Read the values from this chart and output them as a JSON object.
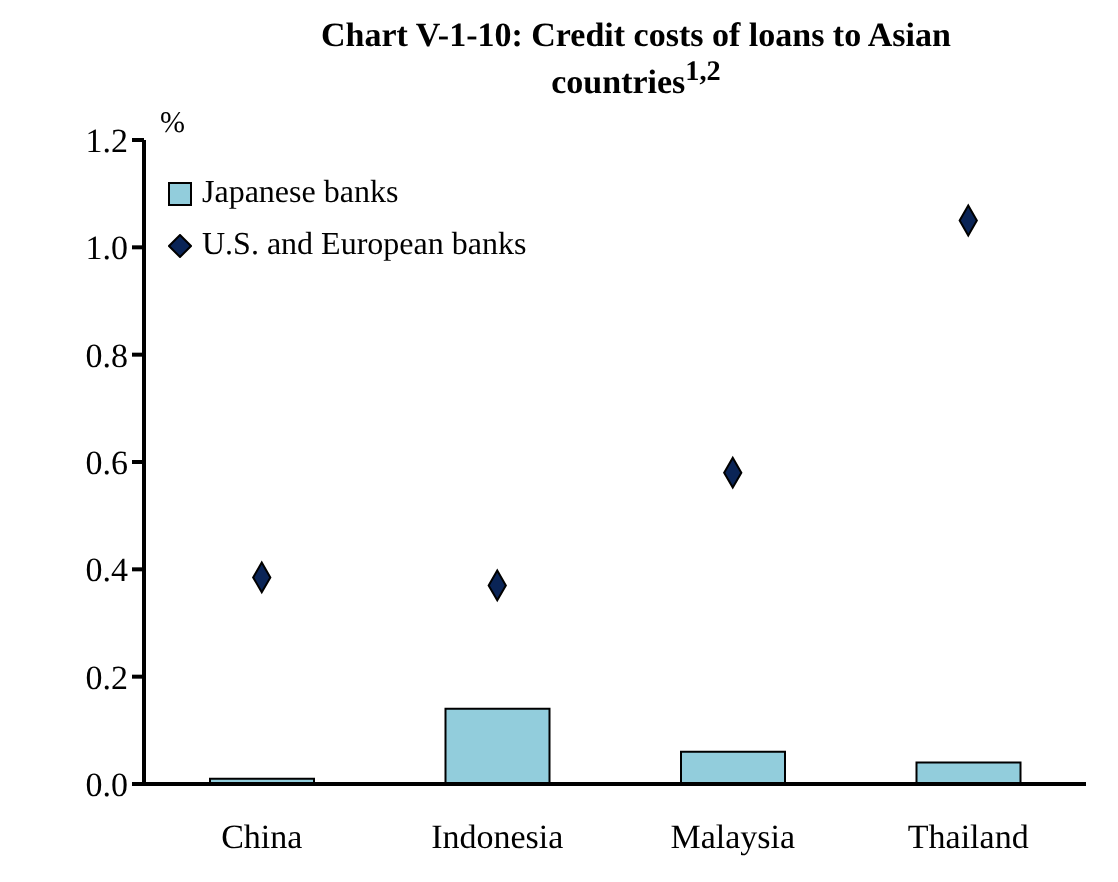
{
  "chart_data": {
    "type": "bar",
    "title": "Chart V-1-10: Credit costs of loans to Asian countries$^{1,2}$",
    "ylabel": "%",
    "categories": [
      "China",
      "Indonesia",
      "Malaysia",
      "Thailand"
    ],
    "series": [
      {
        "name": "Japanese banks",
        "type": "bar",
        "color": "#92cddc",
        "values": [
          0.01,
          0.14,
          0.06,
          0.04
        ]
      },
      {
        "name": "U.S. and European banks",
        "type": "scatter",
        "marker": "diamond",
        "color": "#0a2456",
        "values": [
          0.385,
          0.37,
          0.58,
          1.05
        ]
      }
    ],
    "ylim": [
      0,
      1.2
    ],
    "yticks": [
      {
        "value": 0,
        "label": "0.0"
      },
      0.2,
      0.4,
      0.6,
      0.8,
      {
        "value": 1,
        "label": "1.0"
      },
      1.2
    ],
    "grid": false,
    "legend": "top left"
  }
}
